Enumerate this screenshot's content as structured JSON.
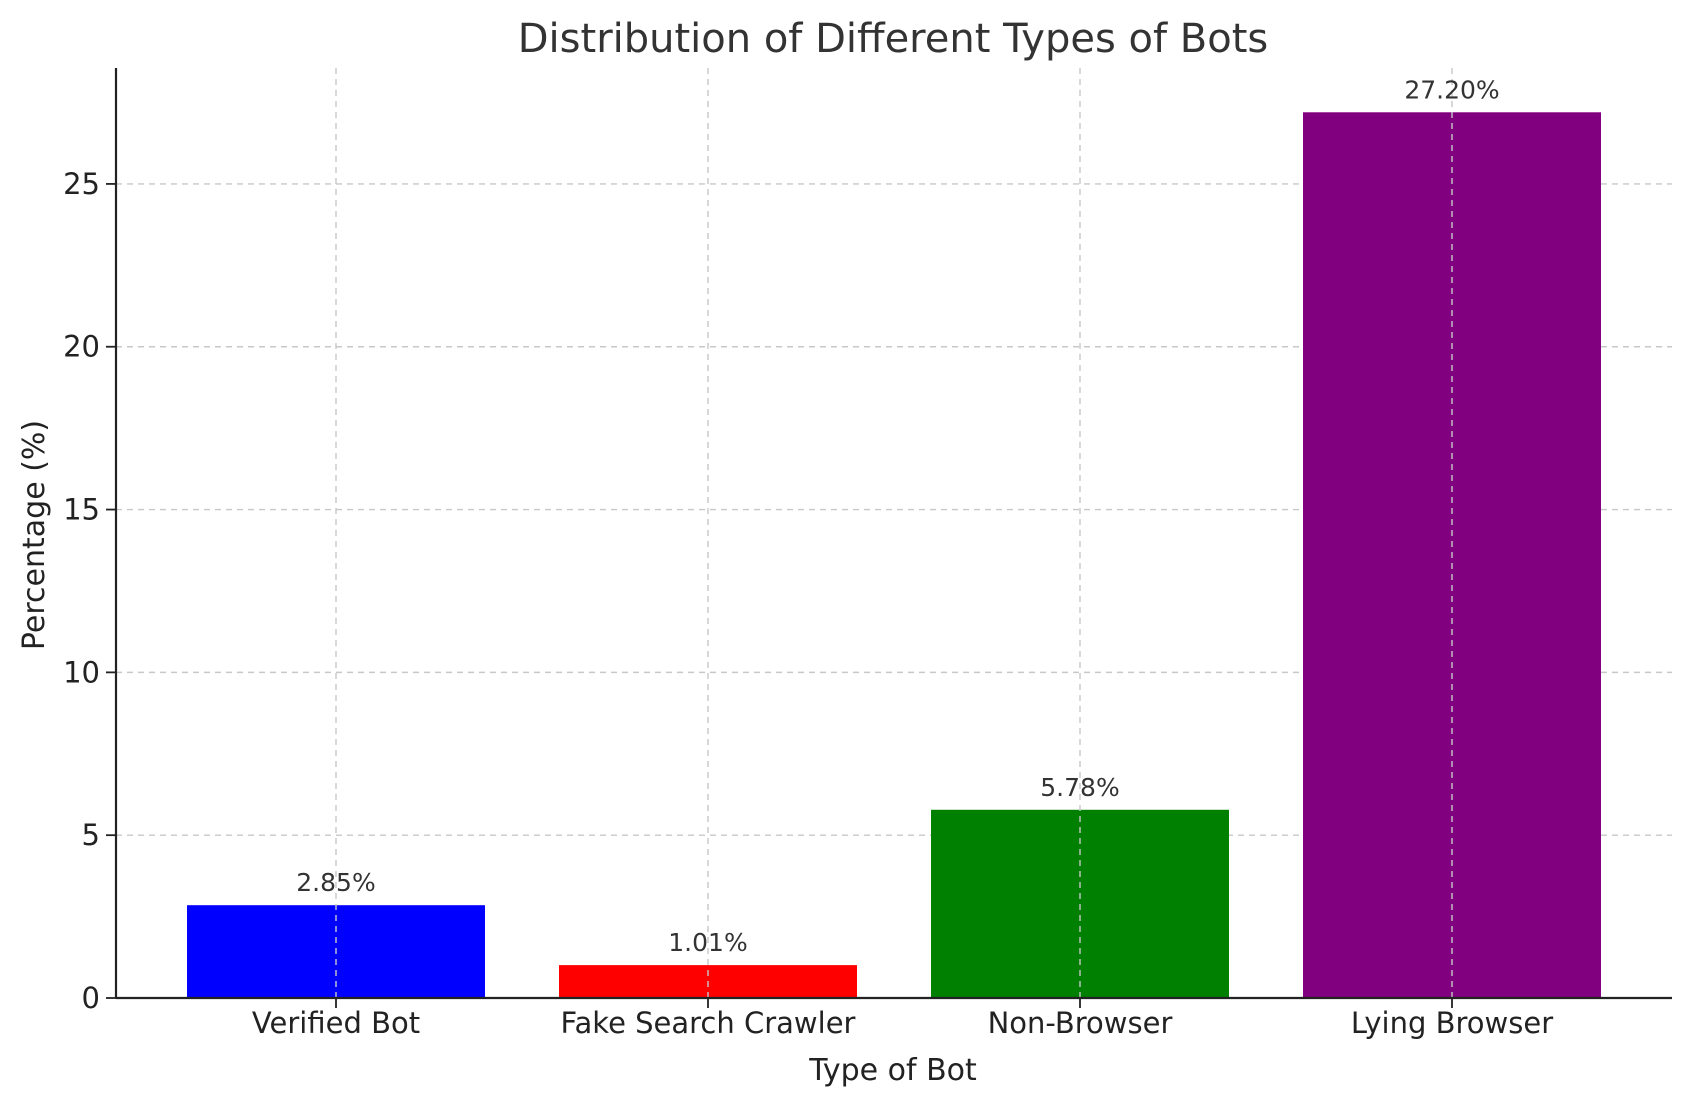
{
  "chart_data": {
    "type": "bar",
    "title": "Distribution of Different Types of Bots",
    "xlabel": "Type of Bot",
    "ylabel": "Percentage (%)",
    "categories": [
      "Verified Bot",
      "Fake Search Crawler",
      "Non-Browser",
      "Lying Browser"
    ],
    "values": [
      2.85,
      1.01,
      5.78,
      27.2
    ],
    "value_labels": [
      "2.85%",
      "1.01%",
      "5.78%",
      "27.20%"
    ],
    "colors": [
      "#0000ff",
      "#ff0000",
      "#008000",
      "#800080"
    ],
    "ylim": [
      0,
      28.56
    ],
    "yticks": [
      0,
      5,
      10,
      15,
      20,
      25
    ],
    "grid": true,
    "legend": "none"
  }
}
